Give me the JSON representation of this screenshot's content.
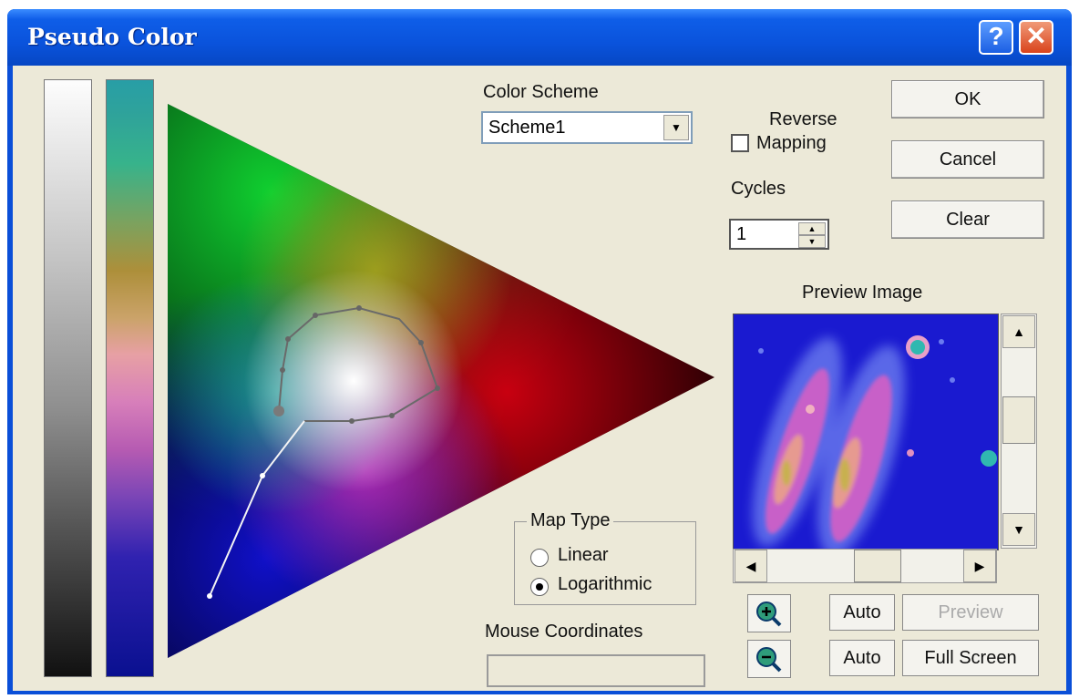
{
  "window": {
    "title": "Pseudo Color"
  },
  "color_scheme": {
    "label": "Color Scheme",
    "value": "Scheme1"
  },
  "reverse_mapping": {
    "label_line1": "Reverse",
    "label_line2": "Mapping",
    "checked": false
  },
  "cycles": {
    "label": "Cycles",
    "value": "1"
  },
  "buttons": {
    "ok": "OK",
    "cancel": "Cancel",
    "clear": "Clear"
  },
  "preview": {
    "label": "Preview Image"
  },
  "map_type": {
    "label": "Map Type",
    "linear": "Linear",
    "logarithmic": "Logarithmic",
    "selected": "Logarithmic"
  },
  "mouse_coordinates": {
    "label": "Mouse  Coordinates",
    "value": ""
  },
  "preview_controls": {
    "auto_1": "Auto",
    "preview": "Preview",
    "auto_2": "Auto",
    "full_screen": "Full Screen"
  },
  "icons": {
    "help": "help-icon",
    "close": "close-icon",
    "zoom_in": "zoom-in-icon",
    "zoom_out": "zoom-out-icon"
  },
  "colors": {
    "title_bar": "#0a53dc",
    "dialog_bg": "#ece9d8",
    "close_button": "#d9431c"
  }
}
